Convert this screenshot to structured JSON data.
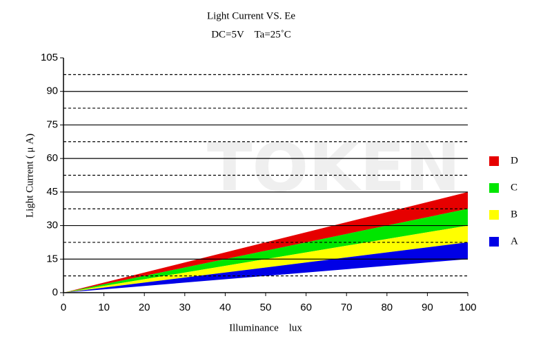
{
  "chart_data": {
    "type": "band",
    "title": "Light Current VS. Ee",
    "subtitle": "DC=5V　Ta=25˚C",
    "x_label": "Illuminance　lux",
    "y_label": "Light Current ( μ A)",
    "watermark": "TOKEN",
    "x": [
      0,
      100
    ],
    "series": [
      {
        "name": "D",
        "color": "#e60000",
        "lower": [
          0,
          37.5
        ],
        "upper": [
          0,
          45
        ]
      },
      {
        "name": "C",
        "color": "#00e600",
        "lower": [
          0,
          30
        ],
        "upper": [
          0,
          37.5
        ]
      },
      {
        "name": "B",
        "color": "#ffff00",
        "lower": [
          0,
          22.5
        ],
        "upper": [
          0,
          30
        ]
      },
      {
        "name": "A",
        "color": "#0000e6",
        "lower": [
          0,
          15
        ],
        "upper": [
          0,
          22.5
        ]
      }
    ],
    "xlim": [
      0,
      100
    ],
    "xticks": [
      0,
      10,
      20,
      30,
      40,
      50,
      60,
      70,
      80,
      90,
      100
    ],
    "ylim": [
      0,
      105
    ],
    "yticks": [
      0,
      15,
      30,
      45,
      60,
      75,
      90,
      105
    ],
    "minor_gridlines": [
      7.5,
      22.5,
      37.5,
      52.5,
      67.5,
      82.5,
      97.5
    ],
    "grid": true,
    "legend": "right"
  }
}
